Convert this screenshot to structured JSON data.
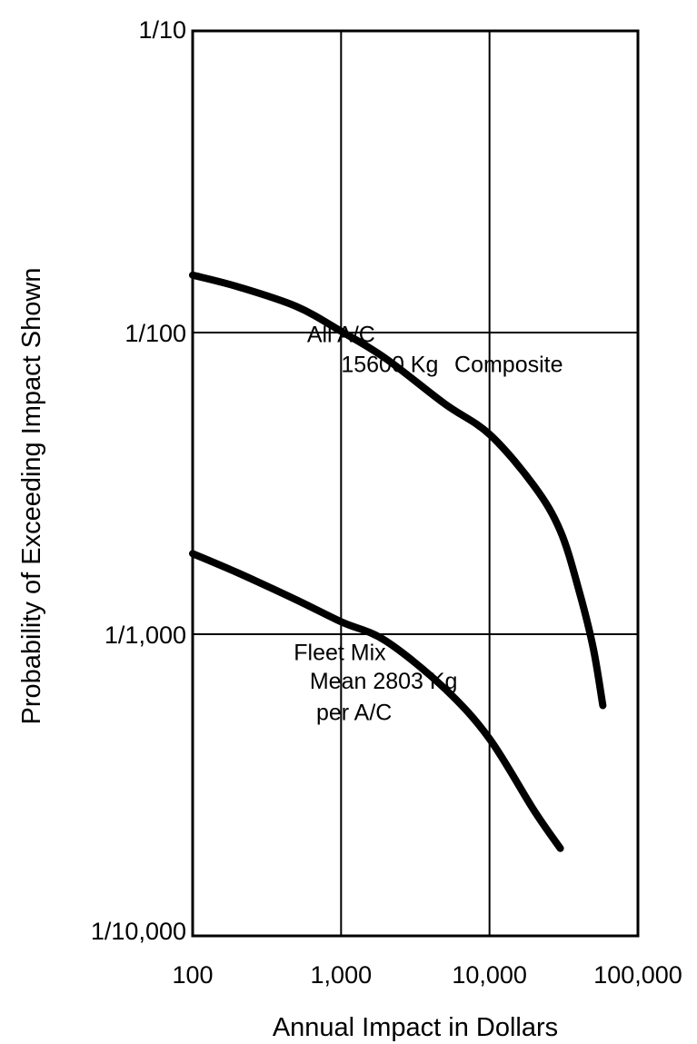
{
  "chart_data": {
    "type": "line",
    "xlabel": "Annual Impact in Dollars",
    "ylabel": "Probability of Exceeding Impact Shown",
    "x_scale": "log",
    "y_scale": "log",
    "xlim": [
      100,
      100000
    ],
    "ylim": [
      0.0001,
      0.1
    ],
    "grid": true,
    "x_ticks": [
      {
        "value": 100,
        "label": "100"
      },
      {
        "value": 1000,
        "label": "1,000"
      },
      {
        "value": 10000,
        "label": "10,000"
      },
      {
        "value": 100000,
        "label": "100,000"
      }
    ],
    "y_ticks": [
      {
        "value": 0.1,
        "label": "1/10"
      },
      {
        "value": 0.01,
        "label": "1/100"
      },
      {
        "value": 0.001,
        "label": "1/1,000"
      },
      {
        "value": 0.0001,
        "label": "1/10,000"
      }
    ],
    "series": [
      {
        "key": "upper",
        "x": [
          100,
          200,
          500,
          1000,
          2000,
          5000,
          10000,
          20000,
          30000,
          40000,
          50000,
          58000
        ],
        "y": [
          0.0155,
          0.0142,
          0.0122,
          0.0101,
          0.0082,
          0.0058,
          0.0046,
          0.0031,
          0.0022,
          0.0014,
          0.0009,
          0.00058
        ]
      },
      {
        "key": "lower",
        "x": [
          100,
          200,
          500,
          1000,
          2000,
          5000,
          10000,
          20000,
          30000
        ],
        "y": [
          0.00185,
          0.0016,
          0.0013,
          0.0011,
          0.00095,
          0.00066,
          0.00045,
          0.00026,
          0.000195
        ]
      }
    ],
    "annotations": [
      {
        "text": "All A/C",
        "x": 1000,
        "y": 0.0093,
        "anchor": "middle"
      },
      {
        "text": "15600 Kg",
        "x": 1000,
        "y": 0.0074,
        "anchor": "start"
      },
      {
        "text": "Composite",
        "x": 5800,
        "y": 0.0074,
        "anchor": "start"
      },
      {
        "text": "Fleet Mix",
        "x": 480,
        "y": 0.00082,
        "anchor": "start"
      },
      {
        "text": "Mean 2803 Kg",
        "x": 615,
        "y": 0.00066,
        "anchor": "start"
      },
      {
        "text": "per A/C",
        "x": 680,
        "y": 0.00052,
        "anchor": "start"
      }
    ]
  }
}
